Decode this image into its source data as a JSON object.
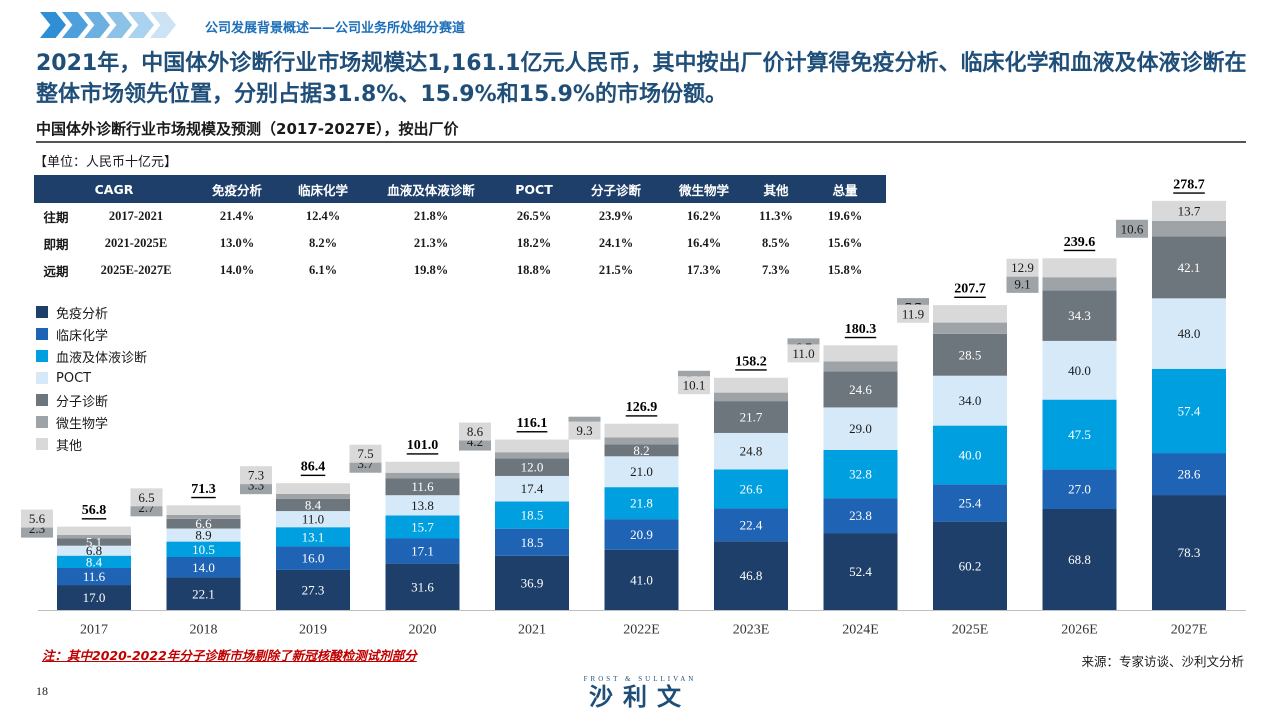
{
  "header": {
    "breadcrumb": "公司发展背景概述——公司业务所处细分赛道",
    "headline": "2021年，中国体外诊断行业市场规模达1,161.1亿元人民币，其中按出厂价计算得免疫分析、临床化学和血液及体液诊断在整体市场领先位置，分别占据31.8%、15.9%和15.9%的市场份额。",
    "subtitle": "中国体外诊断行业市场规模及预测（2017-2027E），按出厂价",
    "unit": "【单位：人民币十亿元】"
  },
  "cagr_table": {
    "headers": [
      "CAGR",
      "免疫分析",
      "临床化学",
      "血液及体液诊断",
      "POCT",
      "分子诊断",
      "微生物学",
      "其他",
      "总量"
    ],
    "rows": [
      {
        "label": "往期",
        "period": "2017-2021",
        "values": [
          "21.4%",
          "12.4%",
          "21.8%",
          "26.5%",
          "23.9%",
          "16.2%",
          "11.3%",
          "19.6%"
        ]
      },
      {
        "label": "即期",
        "period": "2021-2025E",
        "values": [
          "13.0%",
          "8.2%",
          "21.3%",
          "18.2%",
          "24.1%",
          "16.4%",
          "8.5%",
          "15.6%"
        ]
      },
      {
        "label": "远期",
        "period": "2025E-2027E",
        "values": [
          "14.0%",
          "6.1%",
          "19.8%",
          "18.8%",
          "21.5%",
          "17.3%",
          "7.3%",
          "15.8%"
        ]
      }
    ]
  },
  "colors": {
    "header_bg": "#1f3f6b",
    "headline": "#1f4e79",
    "note": "#c00000"
  },
  "chart_data": {
    "type": "bar",
    "stacked": true,
    "categories": [
      "2017",
      "2018",
      "2019",
      "2020",
      "2021",
      "2022E",
      "2023E",
      "2024E",
      "2025E",
      "2026E",
      "2027E"
    ],
    "series": [
      {
        "name": "免疫分析",
        "color": "#1f3f6b",
        "values": [
          17.0,
          22.1,
          27.3,
          31.6,
          36.9,
          41.0,
          46.8,
          52.4,
          60.2,
          68.8,
          78.3
        ]
      },
      {
        "name": "临床化学",
        "color": "#1f64b4",
        "values": [
          11.6,
          14.0,
          16.0,
          17.1,
          18.5,
          20.9,
          22.4,
          23.8,
          25.4,
          27.0,
          28.6
        ]
      },
      {
        "name": "血液及体液诊断",
        "color": "#00a0e0",
        "values": [
          8.4,
          10.5,
          13.1,
          15.7,
          18.5,
          21.8,
          26.6,
          32.8,
          40.0,
          47.5,
          57.4
        ]
      },
      {
        "name": "POCT",
        "color": "#d6e9f8",
        "values": [
          6.8,
          8.9,
          11.0,
          13.8,
          17.4,
          21.0,
          24.8,
          29.0,
          34.0,
          40.0,
          48.0
        ]
      },
      {
        "name": "分子诊断",
        "color": "#6e767d",
        "values": [
          5.1,
          6.6,
          8.4,
          11.6,
          12.0,
          8.2,
          21.7,
          24.6,
          28.5,
          34.3,
          42.1
        ]
      },
      {
        "name": "微生物学",
        "color": "#9ea3a8",
        "values": [
          2.3,
          2.7,
          3.3,
          3.7,
          4.2,
          4.7,
          5.8,
          6.7,
          7.7,
          9.1,
          10.6
        ]
      },
      {
        "name": "其他",
        "color": "#d9d9d9",
        "values": [
          5.6,
          6.5,
          7.3,
          7.5,
          8.6,
          9.3,
          10.1,
          11.0,
          11.9,
          12.9,
          13.7
        ]
      }
    ],
    "totals": [
      "56.8",
      "71.3",
      "86.4",
      "101.0",
      "116.1",
      "126.9",
      "158.2",
      "180.3",
      "207.7",
      "239.6",
      "278.7"
    ],
    "legend": "left"
  },
  "footer": {
    "note": "注：其中2020-2022年分子诊断市场剔除了新冠核酸检测试剂部分",
    "source": "来源：专家访谈、沙利文分析",
    "page": "18",
    "logo_top": "FROST & SULLIVAN",
    "logo_main": "沙利文"
  }
}
